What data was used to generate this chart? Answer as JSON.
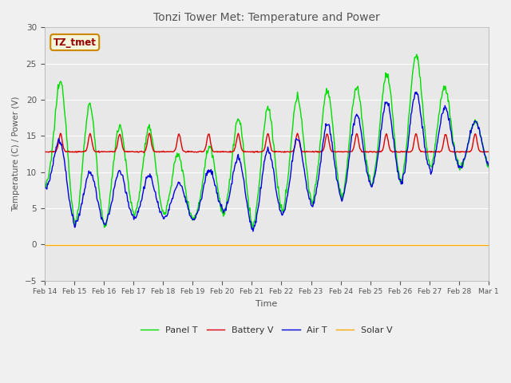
{
  "title": "Tonzi Tower Met: Temperature and Power",
  "xlabel": "Time",
  "ylabel": "Temperature (C) / Power (V)",
  "ylim": [
    -5,
    30
  ],
  "yticks": [
    -5,
    0,
    5,
    10,
    15,
    20,
    25,
    30
  ],
  "xtick_labels": [
    "Feb 14",
    "Feb 15",
    "Feb 16",
    "Feb 17",
    "Feb 18",
    "Feb 19",
    "Feb 20",
    "Feb 21",
    "Feb 22",
    "Feb 23",
    "Feb 24",
    "Feb 25",
    "Feb 26",
    "Feb 27",
    "Feb 28",
    "Mar 1"
  ],
  "n_days": 15,
  "legend_labels": [
    "Panel T",
    "Battery V",
    "Air T",
    "Solar V"
  ],
  "legend_colors": [
    "#00dd00",
    "#dd0000",
    "#0000dd",
    "#ffaa00"
  ],
  "panel_color": "#00dd00",
  "battery_color": "#dd0000",
  "air_color": "#0000dd",
  "solar_color": "#ffaa00",
  "plot_bg_color": "#e8e8e8",
  "fig_bg_color": "#f0f0f0",
  "annotation_text": "TZ_tmet",
  "annotation_color": "#990000",
  "annotation_bg": "#f5f5dc",
  "annotation_border": "#cc8800",
  "grid_color": "#ffffff",
  "title_color": "#555555",
  "label_color": "#555555",
  "tick_color": "#555555"
}
